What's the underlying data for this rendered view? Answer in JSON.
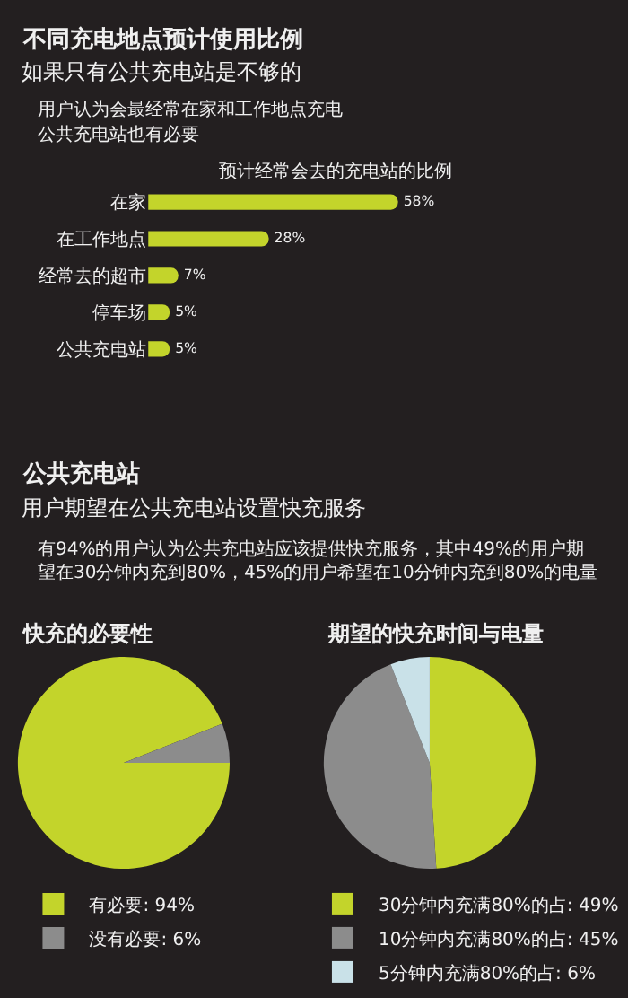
{
  "chart_data": [
    {
      "type": "bar",
      "orientation": "horizontal",
      "title": "不同充电地点预计使用比例",
      "subtitle": "如果只有公共充电站是不够的",
      "annotations": [
        "用户认为会最经常在家和工作地点充电",
        "公共充电站也有必要"
      ],
      "xlabel": "预计经常会去的充电站的比例",
      "categories": [
        "在家",
        "在工作地点",
        "经常去的超市",
        "停车场",
        "公共充电站"
      ],
      "values": [
        58,
        28,
        7,
        5,
        5
      ],
      "value_labels": [
        "58%",
        "28%",
        "7%",
        "5%",
        "5%"
      ],
      "color": "#c3d42b",
      "tick_labels": "y",
      "grid": false
    },
    {
      "type": "other",
      "title": "公共充电站",
      "subtitle": "用户期望在公共充电站设置快充服务",
      "annotations": [
        "有94%的用户认为公共充电站应该提供快充服务，其中49%的用户期望在30分钟内充到80%，45%的用户希望在10分钟内充到80%的电量"
      ]
    },
    {
      "type": "pie",
      "title": "快充的必要性",
      "categories": [
        "有必要",
        "没有必要"
      ],
      "values": [
        94,
        6
      ],
      "value_labels": [
        "94%",
        "6%"
      ],
      "colors": [
        "#c3d42b",
        "#8c8c8c"
      ],
      "legend": "bottom"
    },
    {
      "type": "pie",
      "title": "期望的快充时间与电量",
      "categories": [
        "30分钟内充满80%的占",
        "10分钟内充满80%的占",
        "5分钟内充满80%的占"
      ],
      "values": [
        49,
        45,
        6
      ],
      "value_labels": [
        "49%",
        "45%",
        "6%"
      ],
      "colors": [
        "#c3d42b",
        "#8c8c8c",
        "#c9e1e8"
      ],
      "legend": "bottom"
    }
  ]
}
